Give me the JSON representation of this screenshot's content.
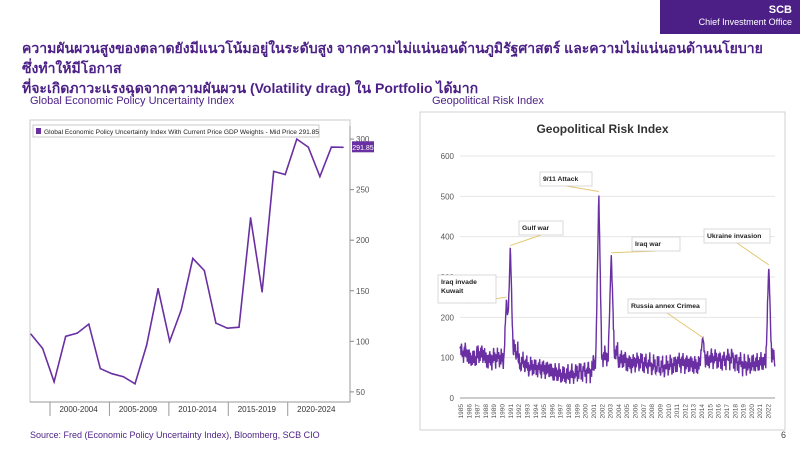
{
  "logo": {
    "brand": "SCB",
    "unit": "Chief Investment Office"
  },
  "headline": {
    "line1": "ความผันผวนสูงของตลาดยังมีแนวโน้มอยู่ในระดับสูง จากความไม่แน่นอนด้านภูมิรัฐศาสตร์ และความไม่แน่นอนด้านนโยบาย ซึ่งทำให้มีโอกาส",
    "line2": "ที่จะเกิดภาวะแรงฉุดจากความผันผวน (Volatility drag) ใน Portfolio ได้มาก"
  },
  "left_subtitle": "Global Economic Policy Uncertainty Index",
  "right_subtitle": "Geopolitical Risk Index",
  "source": "Source: Fred (Economic Policy Uncertainty Index), Bloomberg, SCB CIO",
  "page_number": "6",
  "chart_data": [
    {
      "type": "line",
      "title": "",
      "legend": "Global Economic Policy Uncertainty Index With Current Price GDP Weights - Mid Price 291.85",
      "last_value_label": "291.85",
      "ylim": [
        40,
        305
      ],
      "yticks": [
        50,
        100,
        150,
        200,
        250,
        300
      ],
      "xticks": [
        "2000-2004",
        "2005-2009",
        "2010-2014",
        "2015-2019",
        "2020-2024"
      ],
      "x": [
        1997,
        1998,
        1999,
        2000,
        2001,
        2002,
        2003,
        2004,
        2005,
        2006,
        2007,
        2008,
        2009,
        2010,
        2011,
        2012,
        2013,
        2014,
        2015,
        2016,
        2017,
        2018,
        2019,
        2020,
        2021,
        2022,
        2023,
        2024
      ],
      "values": [
        107,
        93,
        60,
        105,
        108,
        117,
        73,
        68,
        65,
        58,
        96,
        152,
        100,
        131,
        182,
        170,
        118,
        113,
        114,
        222,
        149,
        268,
        265,
        300,
        292,
        263,
        292,
        291.85
      ]
    },
    {
      "type": "line",
      "title": "Geopolitical Risk Index",
      "ylim": [
        0,
        600
      ],
      "yticks": [
        0,
        100,
        200,
        300,
        400,
        500,
        600
      ],
      "xticks": [
        "1985",
        "1986",
        "1987",
        "1988",
        "1989",
        "1990",
        "1991",
        "1992",
        "1993",
        "1994",
        "1995",
        "1996",
        "1997",
        "1998",
        "1999",
        "2000",
        "2001",
        "2002",
        "2003",
        "2004",
        "2005",
        "2006",
        "2007",
        "2008",
        "2009",
        "2010",
        "2011",
        "2012",
        "2013",
        "2014",
        "2015",
        "2016",
        "2017",
        "2018",
        "2019",
        "2020",
        "2021",
        "2022"
      ],
      "series_base": [
        115,
        100,
        110,
        95,
        100,
        90,
        115,
        85,
        75,
        72,
        70,
        62,
        58,
        60,
        68,
        68,
        95,
        105,
        115,
        95,
        85,
        88,
        82,
        78,
        75,
        80,
        88,
        85,
        82,
        95,
        100,
        95,
        100,
        88,
        82,
        85,
        88,
        100
      ],
      "spikes": [
        {
          "x": 1990.6,
          "y": 250
        },
        {
          "x": 1991.05,
          "y": 378
        },
        {
          "x": 2001.7,
          "y": 512
        },
        {
          "x": 2003.2,
          "y": 360
        },
        {
          "x": 2014.2,
          "y": 150
        },
        {
          "x": 2022.15,
          "y": 330
        }
      ],
      "annotations": [
        {
          "label": "Iraq invade Kuwait",
          "x": 1990.6,
          "y": 250
        },
        {
          "label": "Gulf war",
          "x": 1991.05,
          "y": 378
        },
        {
          "label": "9/11 Attack",
          "x": 2001.7,
          "y": 512
        },
        {
          "label": "Iraq war",
          "x": 2003.2,
          "y": 360
        },
        {
          "label": "Russia annex Crimea",
          "x": 2014.2,
          "y": 150
        },
        {
          "label": "Ukraine invasion",
          "x": 2022.15,
          "y": 330
        }
      ]
    }
  ],
  "colors": {
    "brand": "#4b1f86",
    "series": "#6a2fa3"
  }
}
